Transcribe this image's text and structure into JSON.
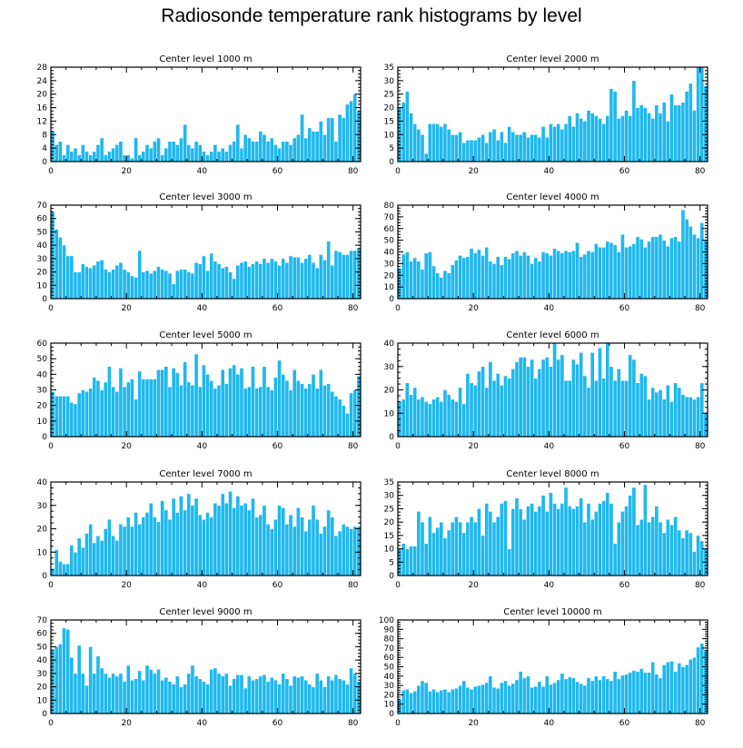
{
  "title": "Radiosonde temperature rank histograms by level",
  "colors": {
    "bar": "#1fb8ee",
    "axis": "#000000",
    "background": "#ffffff"
  },
  "chart_data": [
    {
      "type": "bar",
      "title": "Center level 1000 m",
      "xlim": [
        0,
        82
      ],
      "ylim": [
        0,
        28
      ],
      "xticks": [
        0,
        20,
        40,
        60,
        80
      ],
      "yticks": [
        0,
        4,
        8,
        12,
        16,
        20,
        24,
        28
      ],
      "values": [
        9,
        5,
        6,
        2,
        5,
        3,
        4,
        2,
        5,
        3,
        2,
        3,
        5,
        7,
        2,
        3,
        4,
        5,
        6,
        2,
        2,
        1,
        7,
        2,
        3,
        5,
        4,
        6,
        7,
        2,
        4,
        6,
        6,
        5,
        7,
        11,
        5,
        4,
        6,
        5,
        3,
        2,
        3,
        5,
        3,
        4,
        3,
        5,
        6,
        11,
        4,
        8,
        7,
        6,
        6,
        9,
        8,
        6,
        7,
        5,
        4,
        6,
        6,
        5,
        7,
        8,
        14,
        7,
        10,
        9,
        9,
        12,
        8,
        13,
        13,
        6,
        14,
        13,
        17,
        18,
        20,
        15
      ]
    },
    {
      "type": "bar",
      "title": "Center level 2000 m",
      "xlim": [
        0,
        82
      ],
      "ylim": [
        0,
        35
      ],
      "xticks": [
        0,
        20,
        40,
        60,
        80
      ],
      "yticks": [
        0,
        5,
        10,
        15,
        20,
        25,
        30,
        35
      ],
      "values": [
        20,
        22,
        26,
        18,
        14,
        12,
        10,
        3,
        14,
        14,
        14,
        13,
        14,
        12,
        10,
        10,
        11,
        7,
        8,
        8,
        8,
        9,
        10,
        7,
        11,
        12,
        8,
        11,
        7,
        13,
        11,
        10,
        10,
        11,
        9,
        10,
        10,
        9,
        13,
        9,
        14,
        13,
        14,
        12,
        14,
        17,
        13,
        18,
        16,
        15,
        19,
        18,
        17,
        16,
        14,
        17,
        27,
        26,
        16,
        17,
        19,
        17,
        30,
        20,
        21,
        20,
        18,
        16,
        21,
        18,
        22,
        15,
        25,
        21,
        21,
        22,
        26,
        29,
        19,
        35,
        35,
        28
      ]
    },
    {
      "type": "bar",
      "title": "Center level 3000 m",
      "xlim": [
        0,
        82
      ],
      "ylim": [
        0,
        70
      ],
      "xticks": [
        0,
        20,
        40,
        60,
        80
      ],
      "yticks": [
        0,
        10,
        20,
        30,
        40,
        50,
        60,
        70
      ],
      "values": [
        65,
        52,
        46,
        40,
        32,
        32,
        20,
        20,
        26,
        24,
        23,
        25,
        28,
        29,
        22,
        20,
        22,
        25,
        27,
        22,
        20,
        17,
        16,
        36,
        20,
        21,
        19,
        21,
        24,
        22,
        21,
        19,
        11,
        21,
        22,
        22,
        20,
        19,
        27,
        26,
        32,
        21,
        34,
        28,
        26,
        23,
        24,
        20,
        15,
        25,
        27,
        28,
        24,
        26,
        28,
        26,
        30,
        27,
        30,
        28,
        25,
        30,
        27,
        32,
        31,
        31,
        27,
        30,
        33,
        27,
        23,
        33,
        29,
        43,
        25,
        36,
        35,
        33,
        33,
        36,
        36,
        38
      ]
    },
    {
      "type": "bar",
      "title": "Center level 4000 m",
      "xlim": [
        0,
        82
      ],
      "ylim": [
        0,
        80
      ],
      "xticks": [
        0,
        20,
        40,
        60,
        80
      ],
      "yticks": [
        0,
        10,
        20,
        30,
        40,
        50,
        60,
        70,
        80
      ],
      "values": [
        26,
        38,
        40,
        32,
        35,
        32,
        25,
        39,
        40,
        28,
        22,
        18,
        24,
        22,
        29,
        33,
        37,
        35,
        36,
        43,
        39,
        42,
        37,
        44,
        32,
        30,
        36,
        29,
        36,
        34,
        39,
        41,
        37,
        40,
        37,
        30,
        35,
        32,
        40,
        39,
        37,
        43,
        41,
        39,
        41,
        40,
        41,
        48,
        36,
        38,
        41,
        40,
        47,
        44,
        44,
        49,
        48,
        46,
        40,
        55,
        44,
        45,
        47,
        53,
        51,
        44,
        49,
        53,
        53,
        55,
        50,
        45,
        52,
        53,
        49,
        76,
        68,
        62,
        55,
        52,
        65,
        50
      ]
    },
    {
      "type": "bar",
      "title": "Center level 5000 m",
      "xlim": [
        0,
        82
      ],
      "ylim": [
        0,
        60
      ],
      "xticks": [
        0,
        20,
        40,
        60,
        80
      ],
      "yticks": [
        0,
        10,
        20,
        30,
        40,
        50,
        60
      ],
      "values": [
        29,
        26,
        26,
        26,
        26,
        22,
        21,
        28,
        30,
        29,
        31,
        38,
        36,
        30,
        35,
        45,
        32,
        29,
        44,
        32,
        35,
        37,
        24,
        42,
        37,
        37,
        37,
        37,
        43,
        43,
        45,
        32,
        44,
        41,
        33,
        48,
        35,
        33,
        53,
        32,
        46,
        40,
        36,
        31,
        33,
        43,
        34,
        44,
        46,
        40,
        44,
        31,
        32,
        45,
        31,
        32,
        45,
        32,
        30,
        38,
        49,
        40,
        36,
        30,
        43,
        36,
        34,
        31,
        34,
        40,
        31,
        43,
        33,
        34,
        29,
        26,
        24,
        20,
        15,
        28,
        30,
        39
      ]
    },
    {
      "type": "bar",
      "title": "Center level 6000 m",
      "xlim": [
        0,
        82
      ],
      "ylim": [
        0,
        40
      ],
      "xticks": [
        0,
        20,
        40,
        60,
        80
      ],
      "yticks": [
        0,
        10,
        20,
        30,
        40
      ],
      "values": [
        15,
        16,
        23,
        18,
        21,
        16,
        17,
        15,
        14,
        16,
        17,
        15,
        20,
        18,
        16,
        15,
        21,
        14,
        27,
        23,
        22,
        28,
        30,
        21,
        32,
        24,
        27,
        22,
        26,
        25,
        29,
        32,
        34,
        34,
        30,
        33,
        25,
        29,
        33,
        34,
        30,
        40,
        33,
        35,
        24,
        24,
        33,
        31,
        36,
        26,
        21,
        36,
        24,
        38,
        25,
        40,
        30,
        24,
        29,
        24,
        24,
        35,
        33,
        23,
        27,
        26,
        16,
        21,
        19,
        20,
        16,
        22,
        15,
        23,
        21,
        18,
        17,
        17,
        16,
        17,
        23,
        10
      ]
    },
    {
      "type": "bar",
      "title": "Center level 7000 m",
      "xlim": [
        0,
        82
      ],
      "ylim": [
        0,
        40
      ],
      "xticks": [
        0,
        20,
        40,
        60,
        80
      ],
      "yticks": [
        0,
        10,
        20,
        30,
        40
      ],
      "values": [
        3,
        11,
        6,
        5,
        5,
        13,
        10,
        16,
        12,
        18,
        22,
        14,
        17,
        15,
        20,
        24,
        17,
        15,
        22,
        21,
        25,
        21,
        27,
        22,
        25,
        27,
        31,
        25,
        23,
        32,
        28,
        24,
        33,
        27,
        34,
        28,
        35,
        30,
        33,
        26,
        24,
        27,
        25,
        31,
        30,
        35,
        31,
        36,
        29,
        34,
        30,
        31,
        28,
        33,
        25,
        26,
        30,
        22,
        20,
        24,
        30,
        29,
        22,
        26,
        21,
        29,
        25,
        19,
        24,
        30,
        24,
        18,
        21,
        28,
        25,
        17,
        19,
        22,
        21,
        20,
        21,
        21
      ]
    },
    {
      "type": "bar",
      "title": "Center level 8000 m",
      "xlim": [
        0,
        82
      ],
      "ylim": [
        0,
        35
      ],
      "xticks": [
        0,
        20,
        40,
        60,
        80
      ],
      "yticks": [
        0,
        5,
        10,
        15,
        20,
        25,
        30,
        35
      ],
      "values": [
        10,
        12,
        10,
        11,
        11,
        24,
        20,
        12,
        22,
        16,
        18,
        20,
        14,
        17,
        20,
        22,
        20,
        16,
        20,
        22,
        20,
        25,
        15,
        27,
        24,
        20,
        22,
        27,
        28,
        10,
        25,
        29,
        25,
        21,
        26,
        27,
        24,
        26,
        30,
        24,
        31,
        27,
        25,
        27,
        33,
        26,
        25,
        26,
        29,
        20,
        27,
        21,
        24,
        27,
        28,
        31,
        27,
        12,
        20,
        24,
        26,
        30,
        33,
        19,
        21,
        34,
        20,
        22,
        26,
        20,
        16,
        21,
        19,
        22,
        17,
        14,
        17,
        16,
        9,
        15,
        13,
        10
      ]
    },
    {
      "type": "bar",
      "title": "Center level 9000 m",
      "xlim": [
        0,
        82
      ],
      "ylim": [
        0,
        70
      ],
      "xticks": [
        0,
        20,
        40,
        60,
        80
      ],
      "yticks": [
        0,
        10,
        20,
        30,
        40,
        50,
        60,
        70
      ],
      "values": [
        48,
        50,
        52,
        64,
        63,
        42,
        30,
        51,
        30,
        21,
        50,
        30,
        43,
        34,
        30,
        27,
        30,
        28,
        30,
        24,
        36,
        25,
        26,
        32,
        25,
        36,
        33,
        30,
        33,
        25,
        27,
        24,
        22,
        28,
        20,
        22,
        30,
        36,
        28,
        26,
        24,
        22,
        33,
        34,
        30,
        28,
        30,
        21,
        26,
        29,
        29,
        19,
        28,
        25,
        26,
        28,
        29,
        24,
        27,
        25,
        22,
        30,
        26,
        21,
        28,
        27,
        28,
        25,
        22,
        20,
        30,
        25,
        20,
        28,
        25,
        29,
        26,
        25,
        22,
        34,
        30,
        24
      ]
    },
    {
      "type": "bar",
      "title": "Center level 10000 m",
      "xlim": [
        0,
        82
      ],
      "ylim": [
        0,
        100
      ],
      "xticks": [
        0,
        20,
        40,
        60,
        80
      ],
      "yticks": [
        0,
        10,
        20,
        30,
        40,
        50,
        60,
        70,
        80,
        90,
        100
      ],
      "values": [
        15,
        25,
        26,
        22,
        24,
        30,
        35,
        33,
        24,
        26,
        23,
        25,
        26,
        23,
        26,
        27,
        30,
        35,
        28,
        26,
        29,
        30,
        31,
        33,
        40,
        28,
        27,
        33,
        35,
        30,
        32,
        36,
        45,
        38,
        40,
        28,
        29,
        34,
        29,
        40,
        31,
        33,
        36,
        43,
        37,
        39,
        38,
        34,
        32,
        30,
        38,
        35,
        40,
        36,
        40,
        37,
        35,
        45,
        37,
        41,
        42,
        44,
        46,
        45,
        48,
        44,
        44,
        55,
        42,
        38,
        52,
        55,
        56,
        45,
        54,
        50,
        52,
        58,
        60,
        71,
        75,
        68
      ]
    }
  ]
}
